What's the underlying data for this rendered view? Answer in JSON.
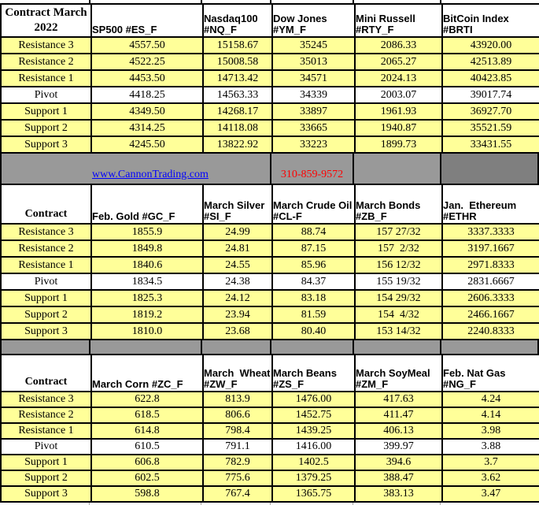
{
  "palette": {
    "row_yellow": "#ffff99",
    "pivot_white": "#ffffff",
    "band_gray": "#999999",
    "band_dark_gray": "#7f7f7f",
    "link_blue": "#0000ff",
    "phone_red": "#ff0000",
    "border_black": "#000000"
  },
  "row_labels": [
    "Resistance 3",
    "Resistance 2",
    "Resistance 1",
    "Pivot",
    "Support 1",
    "Support 2",
    "Support 3"
  ],
  "banner": {
    "website_link": "www.CannonTrading.com",
    "phone_number": "310-859-9572"
  },
  "tables": [
    {
      "corner_label": "Contract March\n2022",
      "columns": [
        {
          "header": "SP500 #ES_F",
          "values": [
            "4557.50",
            "4522.25",
            "4453.50",
            "4418.25",
            "4349.50",
            "4314.25",
            "4245.50"
          ]
        },
        {
          "header": "Nasdaq100\n#NQ_F",
          "values": [
            "15158.67",
            "15008.58",
            "14713.42",
            "14563.33",
            "14268.17",
            "14118.08",
            "13822.92"
          ]
        },
        {
          "header": "Dow Jones\n#YM_F",
          "values": [
            "35245",
            "35013",
            "34571",
            "34339",
            "33897",
            "33665",
            "33223"
          ]
        },
        {
          "header": "Mini Russell\n#RTY_F",
          "values": [
            "2086.33",
            "2065.27",
            "2024.13",
            "2003.07",
            "1961.93",
            "1940.87",
            "1899.73"
          ]
        },
        {
          "header": "BitCoin Index #BRTI",
          "values": [
            "43920.00",
            "42513.89",
            "40423.85",
            "39017.74",
            "36927.70",
            "35521.59",
            "33431.55"
          ]
        }
      ]
    },
    {
      "corner_label": "Contract",
      "columns": [
        {
          "header": "Feb. Gold #GC_F",
          "values": [
            "1855.9",
            "1849.8",
            "1840.6",
            "1834.5",
            "1825.3",
            "1819.2",
            "1810.0"
          ]
        },
        {
          "header": "March Silver\n#SI_F",
          "values": [
            "24.99",
            "24.81",
            "24.55",
            "24.38",
            "24.12",
            "23.94",
            "23.68"
          ]
        },
        {
          "header": "March Crude Oil\n#CL-F",
          "values": [
            "88.74",
            "87.15",
            "85.96",
            "84.37",
            "83.18",
            "81.59",
            "80.40"
          ]
        },
        {
          "header": "March Bonds\n#ZB_F",
          "values": [
            "157 27/32",
            "157  2/32",
            "156 12/32",
            "155 19/32",
            "154 29/32",
            "154  4/32",
            "153 14/32"
          ]
        },
        {
          "header": "Jan.  Ethereum\n#ETHR",
          "values": [
            "3337.3333",
            "3197.1667",
            "2971.8333",
            "2831.6667",
            "2606.3333",
            "2466.1667",
            "2240.8333"
          ]
        }
      ]
    },
    {
      "corner_label": "Contract",
      "columns": [
        {
          "header": "March Corn #ZC_F",
          "values": [
            "622.8",
            "618.5",
            "614.8",
            "610.5",
            "606.8",
            "602.5",
            "598.8"
          ]
        },
        {
          "header": "March  Wheat\n#ZW_F",
          "values": [
            "813.9",
            "806.6",
            "798.4",
            "791.1",
            "782.9",
            "775.6",
            "767.4"
          ]
        },
        {
          "header": "March Beans\n#ZS_F",
          "values": [
            "1476.00",
            "1452.75",
            "1439.25",
            "1416.00",
            "1402.5",
            "1379.25",
            "1365.75"
          ]
        },
        {
          "header": "March SoyMeal\n#ZM_F",
          "values": [
            "417.63",
            "411.47",
            "406.13",
            "399.97",
            "394.6",
            "388.47",
            "383.13"
          ]
        },
        {
          "header": "Feb. Nat Gas #NG_F",
          "values": [
            "4.24",
            "4.14",
            "3.98",
            "3.88",
            "3.7",
            "3.62",
            "3.47"
          ]
        }
      ]
    }
  ]
}
